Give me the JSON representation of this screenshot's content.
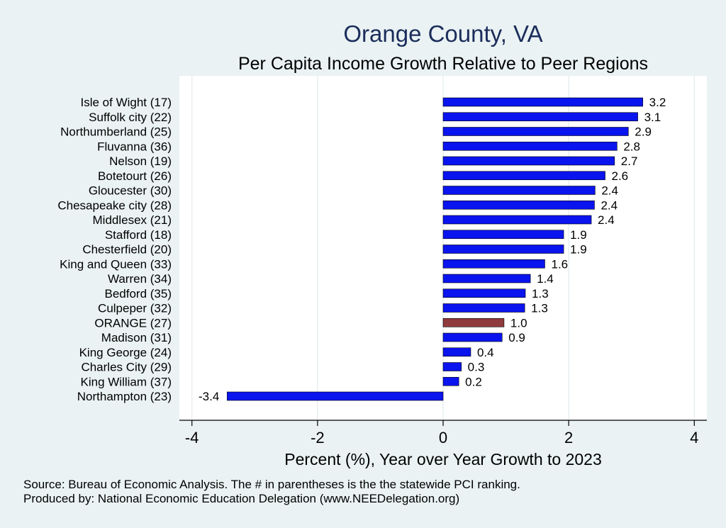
{
  "chart_data": {
    "type": "bar",
    "orientation": "horizontal",
    "title": "Orange County, VA",
    "subtitle": "Per Capita Income Growth Relative to Peer Regions",
    "xlabel": "Percent (%), Year over Year Growth to 2023",
    "ylabel": "",
    "xlim": [
      -4.2,
      4.2
    ],
    "xticks": [
      -4,
      -2,
      0,
      2,
      4
    ],
    "xtick_labels": [
      "-4",
      "-2",
      "0",
      "2",
      "4"
    ],
    "grid": true,
    "categories": [
      "Isle of Wight (17)",
      "Suffolk city (22)",
      "Northumberland (25)",
      "Fluvanna (36)",
      "Nelson (19)",
      "Botetourt (26)",
      "Gloucester (30)",
      "Chesapeake city (28)",
      "Middlesex (21)",
      "Stafford (18)",
      "Chesterfield (20)",
      "King and Queen (33)",
      "Warren (34)",
      "Bedford (35)",
      "Culpeper (32)",
      "ORANGE (27)",
      "Madison (31)",
      "King George (24)",
      "Charles City (29)",
      "King William (37)",
      "Northampton (23)"
    ],
    "values": [
      3.18,
      3.1,
      2.95,
      2.77,
      2.73,
      2.58,
      2.42,
      2.41,
      2.36,
      1.92,
      1.92,
      1.62,
      1.39,
      1.31,
      1.3,
      0.97,
      0.94,
      0.44,
      0.29,
      0.25,
      -3.44
    ],
    "value_labels": [
      "3.2",
      "3.1",
      "2.9",
      "2.8",
      "2.7",
      "2.6",
      "2.4",
      "2.4",
      "2.4",
      "1.9",
      "1.9",
      "1.6",
      "1.4",
      "1.3",
      "1.3",
      "1.0",
      "0.9",
      "0.4",
      "0.3",
      "0.2",
      "-3.4"
    ],
    "highlight_index": 15,
    "colors": {
      "bar": "#0a14ee",
      "highlight": "#8f3a3c",
      "plot_bg": "#ffffff",
      "page_bg": "#eaf2f3",
      "grid": "#e8eff0",
      "title": "#1b2d5b"
    }
  },
  "notes": {
    "source": "Source: Bureau of Economic Analysis. The # in parentheses is the the statewide PCI ranking.",
    "produced_by": "Produced by: National Economic Education Delegation (www.NEEDelegation.org)"
  }
}
